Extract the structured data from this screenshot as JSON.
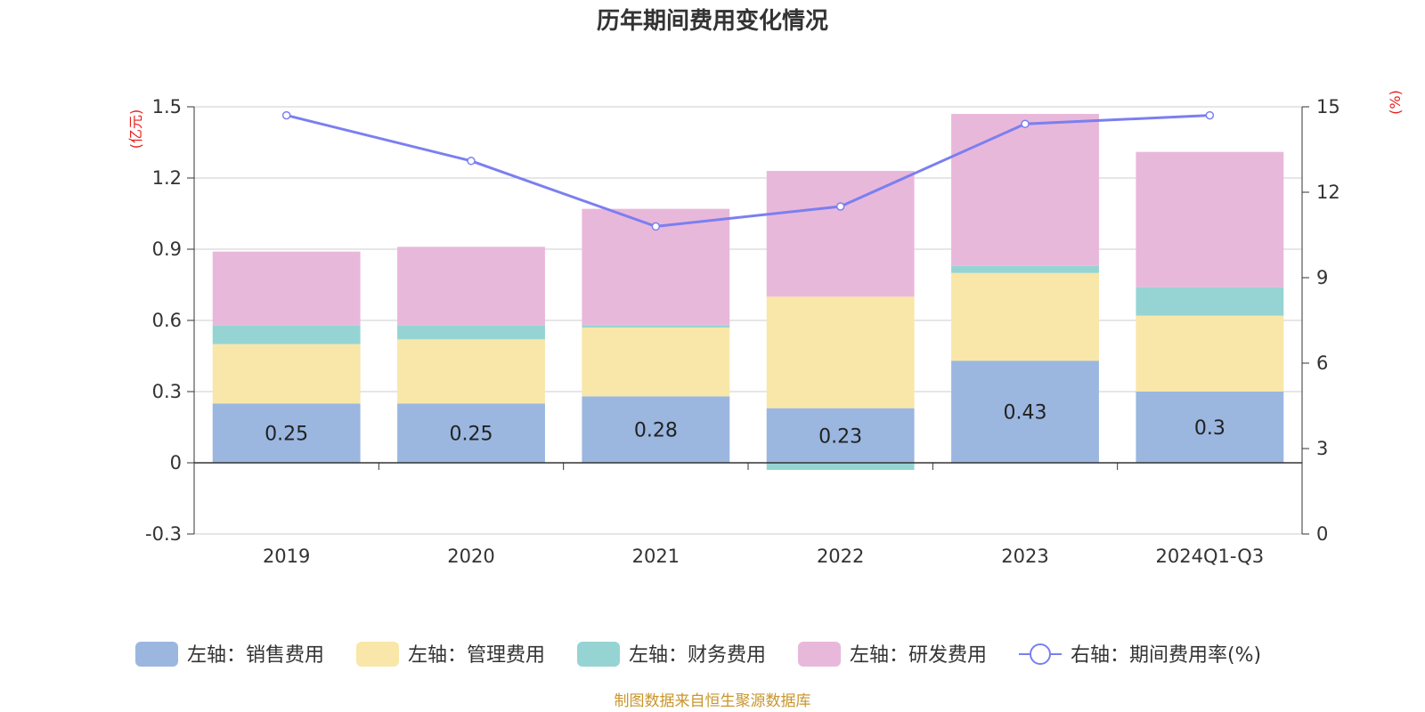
{
  "chart_data": {
    "type": "bar",
    "stacked": true,
    "title": "历年期间费用变化情况",
    "categories": [
      "2019",
      "2020",
      "2021",
      "2022",
      "2023",
      "2024Q1-Q3"
    ],
    "left_axis": {
      "unit": "(亿元)",
      "ylim": [
        -0.3,
        1.5
      ],
      "ticks": [
        -0.3,
        0,
        0.3,
        0.6,
        0.9,
        1.2,
        1.5
      ],
      "tick_labels": [
        "-0.3",
        "0",
        "0.3",
        "0.6",
        "0.9",
        "1.2",
        "1.5"
      ]
    },
    "right_axis": {
      "unit": "(%)",
      "ylim": [
        0,
        15
      ],
      "ticks": [
        0,
        3,
        6,
        9,
        12,
        15
      ],
      "tick_labels": [
        "0",
        "3",
        "6",
        "9",
        "12",
        "15"
      ]
    },
    "series": [
      {
        "name": "左轴：销售费用",
        "type": "bar",
        "axis": "left",
        "color": "#9bb7e0",
        "values": [
          0.25,
          0.25,
          0.28,
          0.23,
          0.43,
          0.3
        ],
        "labels": [
          "0.25",
          "0.25",
          "0.28",
          "0.23",
          "0.43",
          "0.3"
        ]
      },
      {
        "name": "左轴：管理费用",
        "type": "bar",
        "axis": "left",
        "color": "#f8e7a8",
        "values": [
          0.25,
          0.27,
          0.29,
          0.47,
          0.37,
          0.32
        ]
      },
      {
        "name": "左轴：财务费用",
        "type": "bar",
        "axis": "left",
        "color": "#96d4d4",
        "values": [
          0.08,
          0.06,
          0.01,
          -0.03,
          0.03,
          0.12
        ]
      },
      {
        "name": "左轴：研发费用",
        "type": "bar",
        "axis": "left",
        "color": "#e8b8da",
        "values": [
          0.31,
          0.33,
          0.49,
          0.53,
          0.64,
          0.57
        ]
      },
      {
        "name": "右轴：期间费用率(%)",
        "type": "line",
        "axis": "right",
        "color": "#7b7ff0",
        "values": [
          14.7,
          13.1,
          10.8,
          11.5,
          14.4,
          14.7
        ]
      }
    ],
    "legend_position": "bottom",
    "source": "制图数据来自恒生聚源数据库"
  }
}
